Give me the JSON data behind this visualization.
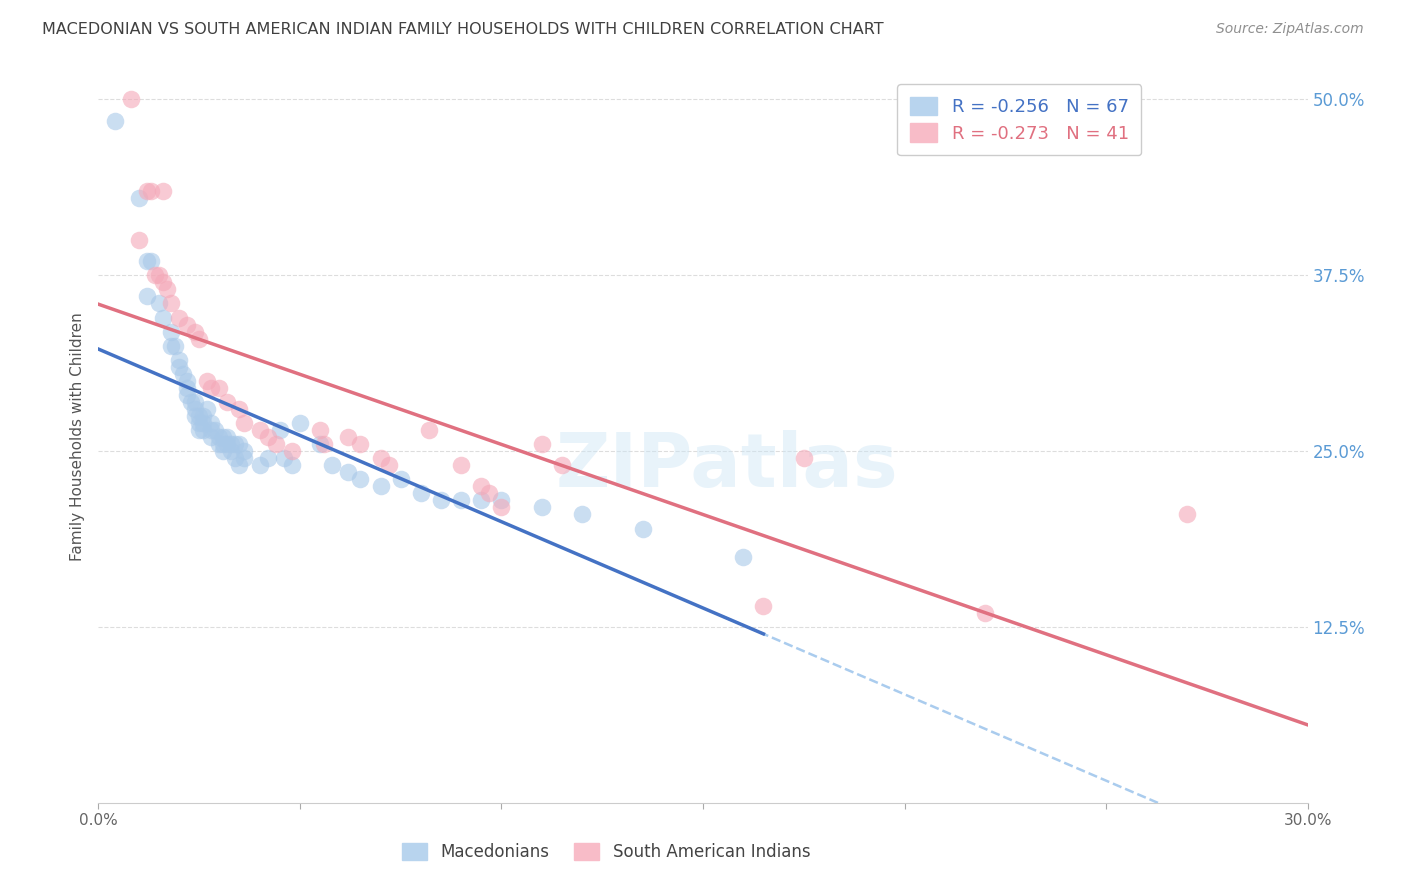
{
  "title": "MACEDONIAN VS SOUTH AMERICAN INDIAN FAMILY HOUSEHOLDS WITH CHILDREN CORRELATION CHART",
  "source": "Source: ZipAtlas.com",
  "ylabel": "Family Households with Children",
  "xlim": [
    0.0,
    0.3
  ],
  "ylim": [
    0.0,
    0.52
  ],
  "ytick_labels_right": [
    "50.0%",
    "37.5%",
    "25.0%",
    "12.5%"
  ],
  "ytick_vals_right": [
    0.5,
    0.375,
    0.25,
    0.125
  ],
  "blue_R": -0.256,
  "blue_N": 67,
  "pink_R": -0.273,
  "pink_N": 41,
  "blue_color": "#a8c8e8",
  "pink_color": "#f4a8b8",
  "blue_line_color": "#4472c4",
  "pink_line_color": "#e07080",
  "dash_color": "#aaccee",
  "blue_scatter": [
    [
      0.004,
      0.485
    ],
    [
      0.01,
      0.43
    ],
    [
      0.012,
      0.385
    ],
    [
      0.013,
      0.385
    ],
    [
      0.012,
      0.36
    ],
    [
      0.015,
      0.355
    ],
    [
      0.016,
      0.345
    ],
    [
      0.018,
      0.335
    ],
    [
      0.018,
      0.325
    ],
    [
      0.019,
      0.325
    ],
    [
      0.02,
      0.315
    ],
    [
      0.02,
      0.31
    ],
    [
      0.021,
      0.305
    ],
    [
      0.022,
      0.3
    ],
    [
      0.022,
      0.295
    ],
    [
      0.022,
      0.29
    ],
    [
      0.023,
      0.285
    ],
    [
      0.024,
      0.285
    ],
    [
      0.024,
      0.28
    ],
    [
      0.024,
      0.275
    ],
    [
      0.025,
      0.275
    ],
    [
      0.025,
      0.27
    ],
    [
      0.025,
      0.265
    ],
    [
      0.026,
      0.265
    ],
    [
      0.026,
      0.27
    ],
    [
      0.026,
      0.275
    ],
    [
      0.027,
      0.28
    ],
    [
      0.028,
      0.27
    ],
    [
      0.028,
      0.265
    ],
    [
      0.028,
      0.26
    ],
    [
      0.029,
      0.265
    ],
    [
      0.03,
      0.26
    ],
    [
      0.03,
      0.255
    ],
    [
      0.031,
      0.26
    ],
    [
      0.031,
      0.255
    ],
    [
      0.031,
      0.25
    ],
    [
      0.032,
      0.26
    ],
    [
      0.032,
      0.255
    ],
    [
      0.033,
      0.255
    ],
    [
      0.033,
      0.25
    ],
    [
      0.034,
      0.255
    ],
    [
      0.034,
      0.245
    ],
    [
      0.035,
      0.255
    ],
    [
      0.035,
      0.24
    ],
    [
      0.036,
      0.25
    ],
    [
      0.036,
      0.245
    ],
    [
      0.04,
      0.24
    ],
    [
      0.042,
      0.245
    ],
    [
      0.045,
      0.265
    ],
    [
      0.046,
      0.245
    ],
    [
      0.048,
      0.24
    ],
    [
      0.05,
      0.27
    ],
    [
      0.055,
      0.255
    ],
    [
      0.058,
      0.24
    ],
    [
      0.062,
      0.235
    ],
    [
      0.065,
      0.23
    ],
    [
      0.07,
      0.225
    ],
    [
      0.075,
      0.23
    ],
    [
      0.08,
      0.22
    ],
    [
      0.085,
      0.215
    ],
    [
      0.09,
      0.215
    ],
    [
      0.095,
      0.215
    ],
    [
      0.1,
      0.215
    ],
    [
      0.11,
      0.21
    ],
    [
      0.12,
      0.205
    ],
    [
      0.135,
      0.195
    ],
    [
      0.16,
      0.175
    ]
  ],
  "pink_scatter": [
    [
      0.008,
      0.5
    ],
    [
      0.012,
      0.435
    ],
    [
      0.013,
      0.435
    ],
    [
      0.016,
      0.435
    ],
    [
      0.01,
      0.4
    ],
    [
      0.014,
      0.375
    ],
    [
      0.015,
      0.375
    ],
    [
      0.016,
      0.37
    ],
    [
      0.017,
      0.365
    ],
    [
      0.018,
      0.355
    ],
    [
      0.02,
      0.345
    ],
    [
      0.022,
      0.34
    ],
    [
      0.024,
      0.335
    ],
    [
      0.025,
      0.33
    ],
    [
      0.027,
      0.3
    ],
    [
      0.028,
      0.295
    ],
    [
      0.03,
      0.295
    ],
    [
      0.032,
      0.285
    ],
    [
      0.035,
      0.28
    ],
    [
      0.036,
      0.27
    ],
    [
      0.04,
      0.265
    ],
    [
      0.042,
      0.26
    ],
    [
      0.044,
      0.255
    ],
    [
      0.048,
      0.25
    ],
    [
      0.055,
      0.265
    ],
    [
      0.056,
      0.255
    ],
    [
      0.062,
      0.26
    ],
    [
      0.065,
      0.255
    ],
    [
      0.07,
      0.245
    ],
    [
      0.072,
      0.24
    ],
    [
      0.082,
      0.265
    ],
    [
      0.09,
      0.24
    ],
    [
      0.095,
      0.225
    ],
    [
      0.097,
      0.22
    ],
    [
      0.1,
      0.21
    ],
    [
      0.11,
      0.255
    ],
    [
      0.115,
      0.24
    ],
    [
      0.165,
      0.14
    ],
    [
      0.22,
      0.135
    ],
    [
      0.175,
      0.245
    ],
    [
      0.27,
      0.205
    ]
  ],
  "legend_labels": [
    "Macedonians",
    "South American Indians"
  ],
  "watermark": "ZIPatlas",
  "background_color": "#ffffff",
  "grid_color": "#dddddd",
  "right_label_color": "#5b9bd5",
  "title_color": "#404040",
  "source_color": "#909090"
}
